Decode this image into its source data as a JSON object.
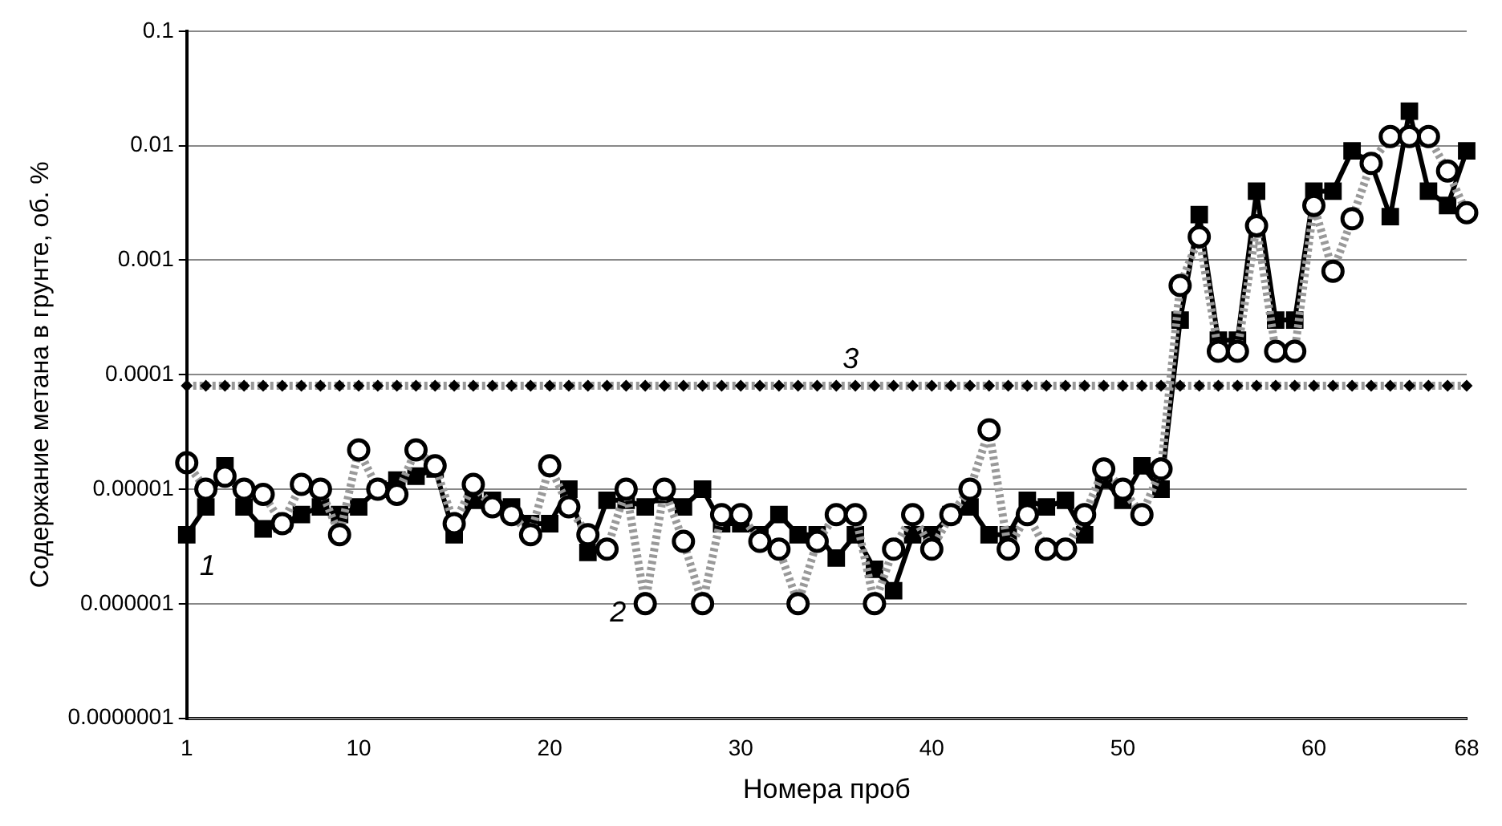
{
  "chart_data": {
    "type": "line",
    "xlabel": "Номера проб",
    "ylabel": "Содержание метана в грунте, об. %",
    "x": [
      1,
      2,
      3,
      4,
      5,
      6,
      7,
      8,
      9,
      10,
      11,
      12,
      13,
      14,
      15,
      16,
      17,
      18,
      19,
      20,
      21,
      22,
      23,
      24,
      25,
      26,
      27,
      28,
      29,
      30,
      31,
      32,
      33,
      34,
      35,
      36,
      37,
      38,
      39,
      40,
      41,
      42,
      43,
      44,
      45,
      46,
      47,
      48,
      49,
      50,
      51,
      52,
      53,
      54,
      55,
      56,
      57,
      58,
      59,
      60,
      61,
      62,
      63,
      64,
      65,
      66,
      67,
      68
    ],
    "series": [
      {
        "name": "1",
        "color": "#000000",
        "marker": "square",
        "line_style": "solid",
        "values": [
          4e-06,
          7e-06,
          1.6e-05,
          7e-06,
          4.5e-06,
          5e-06,
          6e-06,
          7e-06,
          6e-06,
          7e-06,
          1e-05,
          1.2e-05,
          1.3e-05,
          1.5e-05,
          4e-06,
          8e-06,
          8e-06,
          7e-06,
          5e-06,
          5e-06,
          1e-05,
          2.8e-06,
          8e-06,
          8e-06,
          7e-06,
          9e-06,
          7e-06,
          1e-05,
          5e-06,
          5e-06,
          4e-06,
          6e-06,
          4e-06,
          4e-06,
          2.5e-06,
          4e-06,
          2e-06,
          1.3e-06,
          4e-06,
          4e-06,
          6e-06,
          7e-06,
          4e-06,
          4e-06,
          8e-06,
          7e-06,
          8e-06,
          4e-06,
          1.2e-05,
          8e-06,
          1.6e-05,
          1e-05,
          0.0003,
          0.0025,
          0.0002,
          0.0002,
          0.004,
          0.0003,
          0.0003,
          0.004,
          0.004,
          0.009,
          0.007,
          0.0024,
          0.02,
          0.004,
          0.003,
          0.009
        ]
      },
      {
        "name": "2",
        "color": "#999999",
        "marker": "circle",
        "line_style": "dotted",
        "values": [
          1.7e-05,
          1e-05,
          1.3e-05,
          1e-05,
          9e-06,
          5e-06,
          1.1e-05,
          1e-05,
          4e-06,
          2.2e-05,
          1e-05,
          9e-06,
          2.2e-05,
          1.6e-05,
          5e-06,
          1.1e-05,
          7e-06,
          6e-06,
          4e-06,
          1.6e-05,
          7e-06,
          4e-06,
          3e-06,
          1e-05,
          1e-06,
          1e-05,
          3.5e-06,
          1e-06,
          6e-06,
          6e-06,
          3.5e-06,
          3e-06,
          1e-06,
          3.5e-06,
          6e-06,
          6e-06,
          1e-06,
          3e-06,
          6e-06,
          3e-06,
          6e-06,
          1e-05,
          3.3e-05,
          3e-06,
          6e-06,
          3e-06,
          3e-06,
          6e-06,
          1.5e-05,
          1e-05,
          6e-06,
          1.5e-05,
          0.0006,
          0.0016,
          0.00016,
          0.00016,
          0.002,
          0.00016,
          0.00016,
          0.003,
          0.0008,
          0.0023,
          0.007,
          0.012,
          0.012,
          0.012,
          0.006,
          0.0026
        ]
      },
      {
        "name": "3",
        "color": "#999999",
        "marker": "diamond",
        "line_style": "dotted",
        "values": [
          8e-05,
          8e-05,
          8e-05,
          8e-05,
          8e-05,
          8e-05,
          8e-05,
          8e-05,
          8e-05,
          8e-05,
          8e-05,
          8e-05,
          8e-05,
          8e-05,
          8e-05,
          8e-05,
          8e-05,
          8e-05,
          8e-05,
          8e-05,
          8e-05,
          8e-05,
          8e-05,
          8e-05,
          8e-05,
          8e-05,
          8e-05,
          8e-05,
          8e-05,
          8e-05,
          8e-05,
          8e-05,
          8e-05,
          8e-05,
          8e-05,
          8e-05,
          8e-05,
          8e-05,
          8e-05,
          8e-05,
          8e-05,
          8e-05,
          8e-05,
          8e-05,
          8e-05,
          8e-05,
          8e-05,
          8e-05,
          8e-05,
          8e-05,
          8e-05,
          8e-05,
          8e-05,
          8e-05,
          8e-05,
          8e-05,
          8e-05,
          8e-05,
          8e-05,
          8e-05,
          8e-05,
          8e-05,
          8e-05,
          8e-05,
          8e-05,
          8e-05,
          8e-05,
          8e-05
        ]
      }
    ],
    "log": "y",
    "grid": "y",
    "xlim": [
      1,
      68
    ],
    "xticks": [
      1,
      10,
      20,
      30,
      40,
      50,
      60,
      68
    ],
    "ylim": [
      1e-07,
      0.1
    ],
    "yticks": [
      {
        "value": 1e-07,
        "label": "0.0000001"
      },
      {
        "value": 1e-06,
        "label": "0.000001"
      },
      {
        "value": 1e-05,
        "label": "0.00001"
      },
      {
        "value": 0.0001,
        "label": "0.0001"
      },
      {
        "value": 0.001,
        "label": "0.001"
      },
      {
        "value": 0.01,
        "label": "0.01"
      },
      {
        "value": 0.1,
        "label": "0.1"
      }
    ]
  }
}
